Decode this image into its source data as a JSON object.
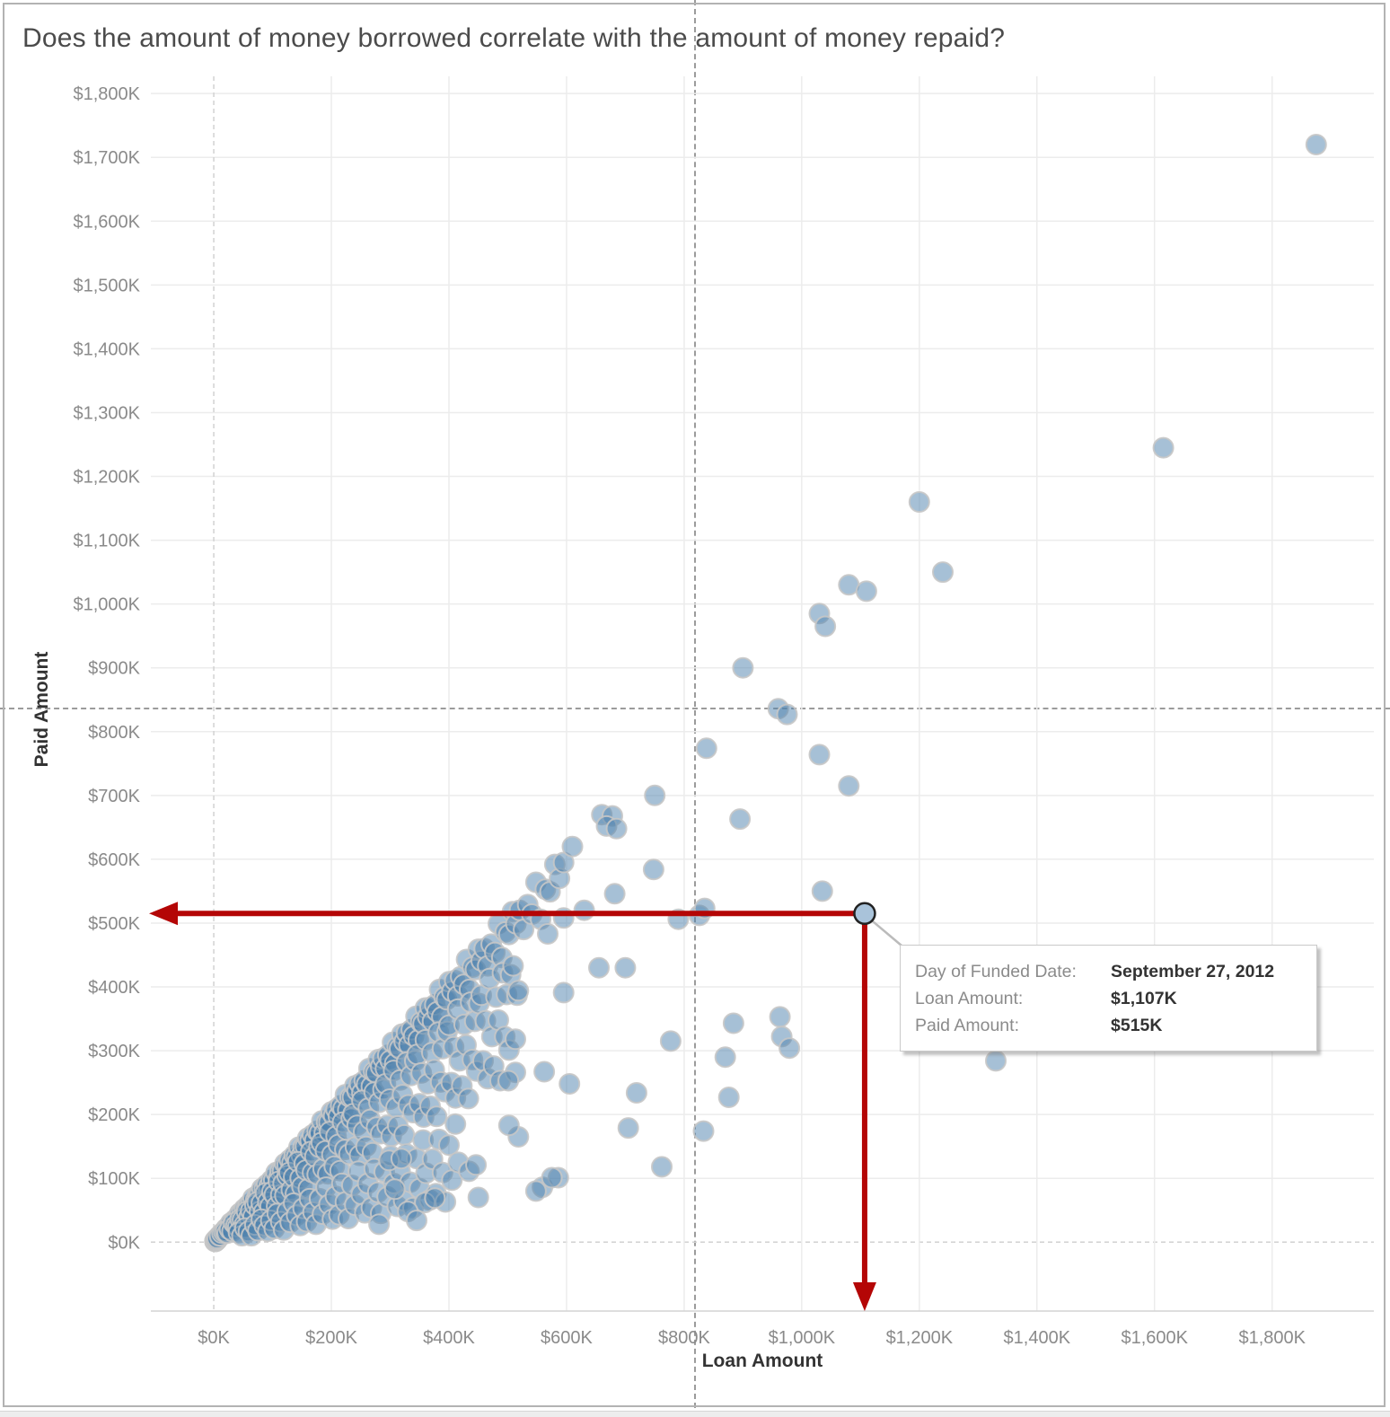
{
  "title": "Does the amount of money borrowed correlate with the amount of money repaid?",
  "axes": {
    "x": {
      "label": "Loan Amount",
      "tick_values": [
        0,
        200,
        400,
        600,
        800,
        1000,
        1200,
        1400,
        1600,
        1800
      ],
      "tick_labels": [
        "$0K",
        "$200K",
        "$400K",
        "$600K",
        "$800K",
        "$1,000K",
        "$1,200K",
        "$1,400K",
        "$1,600K",
        "$1,800K"
      ]
    },
    "y": {
      "label": "Paid Amount",
      "tick_values": [
        0,
        100,
        200,
        300,
        400,
        500,
        600,
        700,
        800,
        900,
        1000,
        1100,
        1200,
        1300,
        1400,
        1500,
        1600,
        1700,
        1800
      ],
      "tick_labels": [
        "$0K",
        "$100K",
        "$200K",
        "$300K",
        "$400K",
        "$500K",
        "$600K",
        "$700K",
        "$800K",
        "$900K",
        "$1,000K",
        "$1,100K",
        "$1,200K",
        "$1,300K",
        "$1,400K",
        "$1,500K",
        "$1,600K",
        "$1,700K",
        "$1,800K"
      ]
    }
  },
  "tooltip": {
    "rows": [
      {
        "label": "Day of Funded Date:",
        "value": "September 27, 2012"
      },
      {
        "label": "Loan Amount:",
        "value": "$1,107K"
      },
      {
        "label": "Paid Amount:",
        "value": "$515K"
      }
    ]
  },
  "colors": {
    "point_fill": "#4e81ad",
    "point_stroke": "#c6c6c6",
    "selected_fill": "#a9c3da",
    "selected_stroke": "#222222",
    "annotation_red": "#b40606",
    "grid": "#ececec",
    "zero_line": "#d2d2d2",
    "axis_base": "#d4d4d4",
    "crosshair": "#9b9b9b",
    "axis_text": "#8a8a8a",
    "axis_title_text": "#333333",
    "callout": "#bbbbbb",
    "title_text": "#4b4b4b"
  },
  "chart_data": {
    "type": "scatter",
    "title": "Does the amount of money borrowed correlate with the amount of money repaid?",
    "xlabel": "Loan Amount",
    "ylabel": "Paid Amount",
    "x_unit": "$K",
    "y_unit": "$K",
    "xlim": [
      -107,
      1973
    ],
    "ylim": [
      -108,
      1827
    ],
    "grid": "on",
    "legend": "none",
    "selected_point": {
      "x": 1107,
      "y": 515,
      "funded_date": "September 27, 2012"
    },
    "points": [
      [
        2,
        2
      ],
      [
        3,
        1
      ],
      [
        4,
        3
      ],
      [
        5,
        4
      ],
      [
        3,
        3
      ],
      [
        6,
        5
      ],
      [
        2,
        1
      ],
      [
        4,
        2
      ],
      [
        7,
        6
      ],
      [
        5,
        3
      ],
      [
        8,
        7
      ],
      [
        3,
        2
      ],
      [
        6,
        4
      ],
      [
        9,
        8
      ],
      [
        4,
        4
      ],
      [
        10,
        9
      ],
      [
        12,
        10
      ],
      [
        6,
        6
      ],
      [
        10,
        10
      ],
      [
        14,
        14
      ],
      [
        17,
        16
      ],
      [
        21,
        21
      ],
      [
        25,
        24
      ],
      [
        29,
        30
      ],
      [
        33,
        30
      ],
      [
        36,
        35
      ],
      [
        40,
        38
      ],
      [
        44,
        45
      ],
      [
        48,
        47
      ],
      [
        52,
        52
      ],
      [
        55,
        51
      ],
      [
        59,
        58
      ],
      [
        63,
        60
      ],
      [
        67,
        69
      ],
      [
        71,
        65
      ],
      [
        75,
        74
      ],
      [
        78,
        75
      ],
      [
        82,
        84
      ],
      [
        86,
        83
      ],
      [
        90,
        90
      ],
      [
        94,
        87
      ],
      [
        98,
        97
      ],
      [
        102,
        97
      ],
      [
        106,
        109
      ],
      [
        110,
        100
      ],
      [
        113,
        111
      ],
      [
        117,
        112
      ],
      [
        121,
        123
      ],
      [
        125,
        121
      ],
      [
        129,
        129
      ],
      [
        133,
        124
      ],
      [
        137,
        136
      ],
      [
        141,
        134
      ],
      [
        145,
        149
      ],
      [
        149,
        136
      ],
      [
        152,
        149
      ],
      [
        156,
        150
      ],
      [
        160,
        163
      ],
      [
        164,
        159
      ],
      [
        168,
        168
      ],
      [
        172,
        160
      ],
      [
        176,
        174
      ],
      [
        180,
        171
      ],
      [
        184,
        190
      ],
      [
        188,
        171
      ],
      [
        192,
        188
      ],
      [
        196,
        188
      ],
      [
        200,
        204
      ],
      [
        204,
        198
      ],
      [
        208,
        208
      ],
      [
        212,
        197
      ],
      [
        216,
        214
      ],
      [
        220,
        209
      ],
      [
        224,
        231
      ],
      [
        228,
        207
      ],
      [
        232,
        227
      ],
      [
        236,
        227
      ],
      [
        240,
        245
      ],
      [
        244,
        237
      ],
      [
        248,
        248
      ],
      [
        252,
        234
      ],
      [
        256,
        253
      ],
      [
        260,
        247
      ],
      [
        264,
        272
      ],
      [
        268,
        244
      ],
      [
        272,
        267
      ],
      [
        276,
        265
      ],
      [
        280,
        286
      ],
      [
        284,
        275
      ],
      [
        288,
        288
      ],
      [
        292,
        272
      ],
      [
        296,
        293
      ],
      [
        300,
        285
      ],
      [
        304,
        313
      ],
      [
        308,
        280
      ],
      [
        312,
        306
      ],
      [
        316,
        303
      ],
      [
        320,
        326
      ],
      [
        324,
        314
      ],
      [
        328,
        328
      ],
      [
        332,
        309
      ],
      [
        336,
        333
      ],
      [
        340,
        323
      ],
      [
        344,
        354
      ],
      [
        348,
        317
      ],
      [
        352,
        345
      ],
      [
        356,
        342
      ],
      [
        360,
        367
      ],
      [
        364,
        353
      ],
      [
        368,
        368
      ],
      [
        372,
        346
      ],
      [
        376,
        372
      ],
      [
        380,
        361
      ],
      [
        384,
        396
      ],
      [
        388,
        353
      ],
      [
        392,
        384
      ],
      [
        396,
        380
      ],
      [
        400,
        408
      ],
      [
        405,
        393
      ],
      [
        410,
        410
      ],
      [
        415,
        386
      ],
      [
        420,
        416
      ],
      [
        425,
        404
      ],
      [
        430,
        443
      ],
      [
        435,
        396
      ],
      [
        440,
        431
      ],
      [
        445,
        427
      ],
      [
        450,
        459
      ],
      [
        455,
        441
      ],
      [
        460,
        460
      ],
      [
        466,
        433
      ],
      [
        472,
        467
      ],
      [
        478,
        454
      ],
      [
        484,
        499
      ],
      [
        490,
        446
      ],
      [
        496,
        486
      ],
      [
        502,
        482
      ],
      [
        508,
        518
      ],
      [
        514,
        499
      ],
      [
        520,
        520
      ],
      [
        527,
        490
      ],
      [
        534,
        529
      ],
      [
        541,
        514
      ],
      [
        548,
        564
      ],
      [
        556,
        506
      ],
      [
        564,
        553
      ],
      [
        572,
        549
      ],
      [
        580,
        592
      ],
      [
        588,
        570
      ],
      [
        595,
        595
      ],
      [
        20,
        17
      ],
      [
        23,
        14
      ],
      [
        27,
        20
      ],
      [
        31,
        17
      ],
      [
        34,
        30
      ],
      [
        38,
        26
      ],
      [
        41,
        24
      ],
      [
        45,
        36
      ],
      [
        49,
        35
      ],
      [
        52,
        27
      ],
      [
        56,
        48
      ],
      [
        60,
        39
      ],
      [
        63,
        49
      ],
      [
        67,
        40
      ],
      [
        70,
        58
      ],
      [
        74,
        63
      ],
      [
        78,
        48
      ],
      [
        81,
        61
      ],
      [
        85,
        47
      ],
      [
        88,
        77
      ],
      [
        92,
        63
      ],
      [
        96,
        56
      ],
      [
        99,
        79
      ],
      [
        103,
        74
      ],
      [
        107,
        56
      ],
      [
        110,
        95
      ],
      [
        114,
        74
      ],
      [
        118,
        92
      ],
      [
        121,
        73
      ],
      [
        125,
        104
      ],
      [
        128,
        109
      ],
      [
        132,
        82
      ],
      [
        136,
        102
      ],
      [
        139,
        76
      ],
      [
        143,
        126
      ],
      [
        147,
        100
      ],
      [
        150,
        87
      ],
      [
        154,
        123
      ],
      [
        157,
        113
      ],
      [
        161,
        84
      ],
      [
        165,
        142
      ],
      [
        168,
        109
      ],
      [
        172,
        134
      ],
      [
        176,
        106
      ],
      [
        179,
        149
      ],
      [
        183,
        156
      ],
      [
        186,
        115
      ],
      [
        190,
        143
      ],
      [
        194,
        107
      ],
      [
        197,
        173
      ],
      [
        201,
        137
      ],
      [
        205,
        119
      ],
      [
        208,
        166
      ],
      [
        212,
        153
      ],
      [
        215,
        112
      ],
      [
        219,
        188
      ],
      [
        223,
        145
      ],
      [
        226,
        176
      ],
      [
        230,
        138
      ],
      [
        234,
        194
      ],
      [
        237,
        201
      ],
      [
        241,
        149
      ],
      [
        244,
        183
      ],
      [
        248,
        136
      ],
      [
        252,
        222
      ],
      [
        255,
        173
      ],
      [
        259,
        150
      ],
      [
        263,
        210
      ],
      [
        266,
        192
      ],
      [
        270,
        140
      ],
      [
        273,
        235
      ],
      [
        277,
        180
      ],
      [
        281,
        219
      ],
      [
        284,
        170
      ],
      [
        288,
        239
      ],
      [
        292,
        248
      ],
      [
        295,
        183
      ],
      [
        299,
        224
      ],
      [
        302,
        166
      ],
      [
        306,
        269
      ],
      [
        310,
        211
      ],
      [
        313,
        182
      ],
      [
        317,
        254
      ],
      [
        321,
        231
      ],
      [
        324,
        168
      ],
      [
        328,
        282
      ],
      [
        331,
        215
      ],
      [
        335,
        261
      ],
      [
        339,
        203
      ],
      [
        342,
        284
      ],
      [
        346,
        294
      ],
      [
        350,
        217
      ],
      [
        353,
        265
      ],
      [
        357,
        196
      ],
      [
        360,
        317
      ],
      [
        364,
        248
      ],
      [
        368,
        213
      ],
      [
        371,
        297
      ],
      [
        375,
        270
      ],
      [
        379,
        197
      ],
      [
        382,
        329
      ],
      [
        386,
        251
      ],
      [
        389,
        303
      ],
      [
        393,
        236
      ],
      [
        397,
        330
      ],
      [
        400,
        340
      ],
      [
        404,
        250
      ],
      [
        408,
        306
      ],
      [
        411,
        226
      ],
      [
        415,
        365
      ],
      [
        418,
        284
      ],
      [
        422,
        245
      ],
      [
        426,
        341
      ],
      [
        429,
        309
      ],
      [
        433,
        225
      ],
      [
        437,
        376
      ],
      [
        440,
        286
      ],
      [
        444,
        346
      ],
      [
        447,
        268
      ],
      [
        451,
        374
      ],
      [
        455,
        387
      ],
      [
        458,
        284
      ],
      [
        462,
        347
      ],
      [
        466,
        256
      ],
      [
        469,
        413
      ],
      [
        473,
        322
      ],
      [
        476,
        276
      ],
      [
        480,
        384
      ],
      [
        484,
        348
      ],
      [
        487,
        253
      ],
      [
        491,
        422
      ],
      [
        495,
        322
      ],
      [
        498,
        388
      ],
      [
        502,
        301
      ],
      [
        505,
        419
      ],
      [
        509,
        433
      ],
      [
        513,
        318
      ],
      [
        516,
        387
      ],
      [
        42,
        15
      ],
      [
        48,
        10
      ],
      [
        53,
        22
      ],
      [
        59,
        17
      ],
      [
        64,
        10
      ],
      [
        70,
        27
      ],
      [
        75,
        18
      ],
      [
        81,
        36
      ],
      [
        86,
        26
      ],
      [
        92,
        17
      ],
      [
        97,
        34
      ],
      [
        103,
        21
      ],
      [
        108,
        45
      ],
      [
        114,
        32
      ],
      [
        119,
        19
      ],
      [
        125,
        48
      ],
      [
        130,
        31
      ],
      [
        136,
        61
      ],
      [
        141,
        42
      ],
      [
        147,
        26
      ],
      [
        152,
        53
      ],
      [
        158,
        32
      ],
      [
        163,
        68
      ],
      [
        169,
        47
      ],
      [
        174,
        28
      ],
      [
        180,
        68
      ],
      [
        185,
        44
      ],
      [
        191,
        86
      ],
      [
        196,
        59
      ],
      [
        202,
        36
      ],
      [
        207,
        72
      ],
      [
        213,
        43
      ],
      [
        218,
        92
      ],
      [
        224,
        63
      ],
      [
        229,
        37
      ],
      [
        235,
        89
      ],
      [
        240,
        58
      ],
      [
        246,
        111
      ],
      [
        251,
        75
      ],
      [
        257,
        46
      ],
      [
        262,
        92
      ],
      [
        268,
        54
      ],
      [
        273,
        115
      ],
      [
        279,
        78
      ],
      [
        284,
        45
      ],
      [
        290,
        110
      ],
      [
        295,
        71
      ],
      [
        301,
        135
      ],
      [
        306,
        92
      ],
      [
        312,
        56
      ],
      [
        317,
        111
      ],
      [
        323,
        65
      ],
      [
        328,
        138
      ],
      [
        334,
        94
      ],
      [
        339,
        54
      ],
      [
        345,
        131
      ],
      [
        350,
        84
      ],
      [
        356,
        160
      ],
      [
        361,
        108
      ],
      [
        367,
        66
      ],
      [
        372,
        130
      ],
      [
        378,
        76
      ],
      [
        383,
        161
      ],
      [
        389,
        109
      ],
      [
        394,
        63
      ],
      [
        400,
        152
      ],
      [
        405,
        97
      ],
      [
        411,
        185
      ],
      [
        416,
        125
      ],
      [
        308,
        83
      ],
      [
        450,
        70
      ],
      [
        434,
        111
      ],
      [
        446,
        121
      ],
      [
        559,
        86
      ],
      [
        586,
        101
      ],
      [
        359,
        62
      ],
      [
        376,
        69
      ],
      [
        330,
        48
      ],
      [
        345,
        34
      ],
      [
        281,
        28
      ],
      [
        298,
        128
      ],
      [
        319,
        131
      ],
      [
        548,
        80
      ],
      [
        575,
        101
      ],
      [
        518,
        165
      ],
      [
        502,
        183
      ],
      [
        518,
        394
      ],
      [
        595,
        391
      ],
      [
        884,
        343
      ],
      [
        963,
        353
      ],
      [
        777,
        315
      ],
      [
        966,
        322
      ],
      [
        979,
        304
      ],
      [
        870,
        290
      ],
      [
        513,
        266
      ],
      [
        562,
        267
      ],
      [
        501,
        253
      ],
      [
        605,
        248
      ],
      [
        719,
        234
      ],
      [
        876,
        227
      ],
      [
        705,
        179
      ],
      [
        833,
        174
      ],
      [
        762,
        118
      ],
      [
        1330,
        284
      ],
      [
        826,
        512
      ],
      [
        790,
        506
      ],
      [
        748,
        584
      ],
      [
        682,
        546
      ],
      [
        630,
        520
      ],
      [
        610,
        620
      ],
      [
        1035,
        550
      ],
      [
        835,
        523
      ],
      [
        660,
        670
      ],
      [
        678,
        668
      ],
      [
        668,
        652
      ],
      [
        685,
        648
      ],
      [
        750,
        700
      ],
      [
        895,
        663
      ],
      [
        1080,
        715
      ],
      [
        838,
        774
      ],
      [
        960,
        836
      ],
      [
        975,
        827
      ],
      [
        900,
        900
      ],
      [
        1030,
        764
      ],
      [
        1030,
        985
      ],
      [
        1040,
        965
      ],
      [
        1080,
        1030
      ],
      [
        1110,
        1020
      ],
      [
        1240,
        1050
      ],
      [
        1200,
        1160
      ],
      [
        1615,
        1245
      ],
      [
        1875,
        1720
      ],
      [
        700,
        430
      ],
      [
        655,
        430
      ],
      [
        568,
        483
      ],
      [
        595,
        508
      ]
    ]
  }
}
